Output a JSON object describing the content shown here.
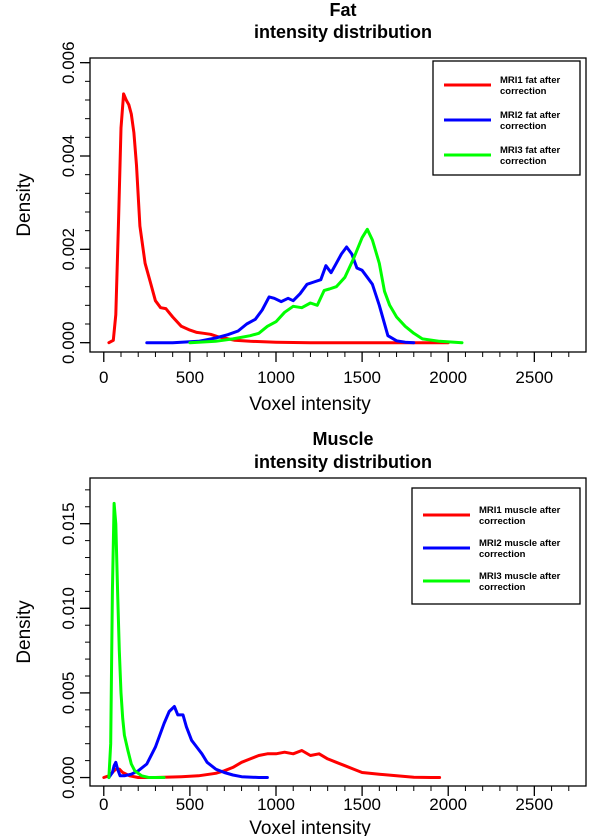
{
  "chart_data": [
    {
      "type": "line",
      "title": [
        "Fat",
        "intensity distribution"
      ],
      "xlabel": "Voxel intensity",
      "ylabel": "Density",
      "xlim": [
        -80,
        2800
      ],
      "ylim": [
        -0.0002,
        0.0061
      ],
      "x_ticks": [
        0,
        500,
        1000,
        1500,
        2000,
        2500
      ],
      "y_ticks": [
        0,
        0.002,
        0.004,
        0.006
      ],
      "y_tick_labels": [
        "0.000",
        "0.002",
        "0.004",
        "0.006"
      ],
      "legend_position": "top-right",
      "series": [
        {
          "name": [
            "MRI1 fat after",
            "correction"
          ],
          "color": "#ff0000",
          "x": [
            30,
            55,
            70,
            85,
            100,
            115,
            130,
            145,
            160,
            175,
            190,
            210,
            240,
            270,
            300,
            330,
            360,
            400,
            450,
            500,
            540,
            580,
            620,
            660,
            700,
            760,
            850,
            1000,
            1200,
            1500,
            1800,
            2000
          ],
          "y": [
            0.0,
            5e-05,
            0.0006,
            0.0025,
            0.0046,
            0.00533,
            0.0052,
            0.0051,
            0.0049,
            0.0045,
            0.0038,
            0.0025,
            0.0017,
            0.0013,
            0.0009,
            0.00075,
            0.00073,
            0.00055,
            0.00035,
            0.00027,
            0.00022,
            0.0002,
            0.00018,
            0.00013,
            0.0001,
            5e-05,
            3e-05,
            1e-05,
            0.0,
            0.0,
            0.0,
            0.0
          ]
        },
        {
          "name": [
            "MRI2 fat after",
            "correction"
          ],
          "color": "#0000ff",
          "x": [
            250,
            400,
            550,
            650,
            720,
            780,
            830,
            880,
            920,
            960,
            990,
            1030,
            1070,
            1100,
            1140,
            1180,
            1220,
            1260,
            1290,
            1320,
            1350,
            1380,
            1410,
            1440,
            1470,
            1500,
            1530,
            1560,
            1600,
            1650,
            1700,
            1750,
            1800
          ],
          "y": [
            0.0,
            0.0,
            3e-05,
            0.0001,
            0.00017,
            0.00025,
            0.0004,
            0.0005,
            0.0007,
            0.00098,
            0.00095,
            0.00088,
            0.00095,
            0.0009,
            0.00105,
            0.00125,
            0.0013,
            0.00135,
            0.00165,
            0.0015,
            0.0017,
            0.0019,
            0.00205,
            0.0019,
            0.0016,
            0.00155,
            0.0014,
            0.00125,
            0.0008,
            0.00015,
            4e-05,
            1e-05,
            0.0
          ]
        },
        {
          "name": [
            "MRI3 fat after",
            "correction"
          ],
          "color": "#00ff00",
          "x": [
            500,
            650,
            750,
            850,
            900,
            950,
            1000,
            1050,
            1100,
            1150,
            1200,
            1240,
            1280,
            1310,
            1350,
            1400,
            1450,
            1500,
            1530,
            1560,
            1600,
            1630,
            1660,
            1700,
            1750,
            1800,
            1850,
            1950,
            2080
          ],
          "y": [
            0.0,
            3e-05,
            8e-05,
            0.00015,
            0.0002,
            0.00035,
            0.00045,
            0.00065,
            0.00078,
            0.00075,
            0.00085,
            0.0008,
            0.00112,
            0.00115,
            0.0012,
            0.0014,
            0.0018,
            0.00225,
            0.00243,
            0.0022,
            0.0017,
            0.0011,
            0.0008,
            0.00055,
            0.00035,
            0.0002,
            8e-05,
            3e-05,
            0.0
          ]
        }
      ]
    },
    {
      "type": "line",
      "title": [
        "Muscle",
        "intensity distribution"
      ],
      "xlabel": "Voxel intensity",
      "ylabel": "Density",
      "xlim": [
        -80,
        2800
      ],
      "ylim": [
        -0.0005,
        0.0177
      ],
      "x_ticks": [
        0,
        500,
        1000,
        1500,
        2000,
        2500
      ],
      "y_ticks": [
        0,
        0.005,
        0.01,
        0.015
      ],
      "y_tick_labels": [
        "0.000",
        "0.005",
        "0.010",
        "0.015"
      ],
      "legend_position": "top-right",
      "series": [
        {
          "name": [
            "MRI1 muscle after",
            "correction"
          ],
          "color": "#ff0000",
          "x": [
            0,
            30,
            50,
            70,
            90,
            110,
            150,
            200,
            300,
            450,
            550,
            650,
            700,
            750,
            800,
            850,
            900,
            950,
            1000,
            1050,
            1100,
            1150,
            1200,
            1250,
            1300,
            1350,
            1400,
            1450,
            1500,
            1600,
            1700,
            1800,
            1900,
            1950
          ],
          "y": [
            0.0,
            0.0001,
            0.0003,
            0.0005,
            0.0005,
            0.0003,
            0.0001,
            0.0,
            0.0,
            5e-05,
            0.0001,
            0.00025,
            0.0004,
            0.0006,
            0.0009,
            0.0011,
            0.0013,
            0.0014,
            0.0014,
            0.0015,
            0.0014,
            0.0016,
            0.0013,
            0.0014,
            0.0011,
            0.0009,
            0.0007,
            0.0005,
            0.0003,
            0.0002,
            0.0001,
            2e-05,
            0.0,
            0.0
          ]
        },
        {
          "name": [
            "MRI2 muscle after",
            "correction"
          ],
          "color": "#0000ff",
          "x": [
            30,
            50,
            60,
            70,
            80,
            95,
            120,
            160,
            200,
            250,
            300,
            350,
            380,
            410,
            430,
            460,
            480,
            510,
            540,
            570,
            600,
            650,
            700,
            750,
            800,
            900,
            950
          ],
          "y": [
            0.0,
            0.0003,
            0.0007,
            0.0009,
            0.0005,
            0.0001,
            0.0001,
            0.0002,
            0.0004,
            0.0008,
            0.0018,
            0.0032,
            0.0039,
            0.0042,
            0.0037,
            0.0037,
            0.003,
            0.0022,
            0.0018,
            0.0014,
            0.0009,
            0.0005,
            0.0003,
            0.00015,
            5e-05,
            0.0,
            0.0
          ]
        },
        {
          "name": [
            "MRI3 muscle after",
            "correction"
          ],
          "color": "#00ff00",
          "x": [
            30,
            40,
            50,
            60,
            70,
            80,
            90,
            100,
            110,
            120,
            140,
            160,
            180,
            220,
            260,
            300,
            350
          ],
          "y": [
            0.0,
            0.002,
            0.011,
            0.0162,
            0.015,
            0.011,
            0.0075,
            0.005,
            0.0035,
            0.0025,
            0.0016,
            0.0008,
            0.0004,
            0.0001,
            0.0,
            0.0,
            0.0
          ]
        }
      ]
    }
  ]
}
